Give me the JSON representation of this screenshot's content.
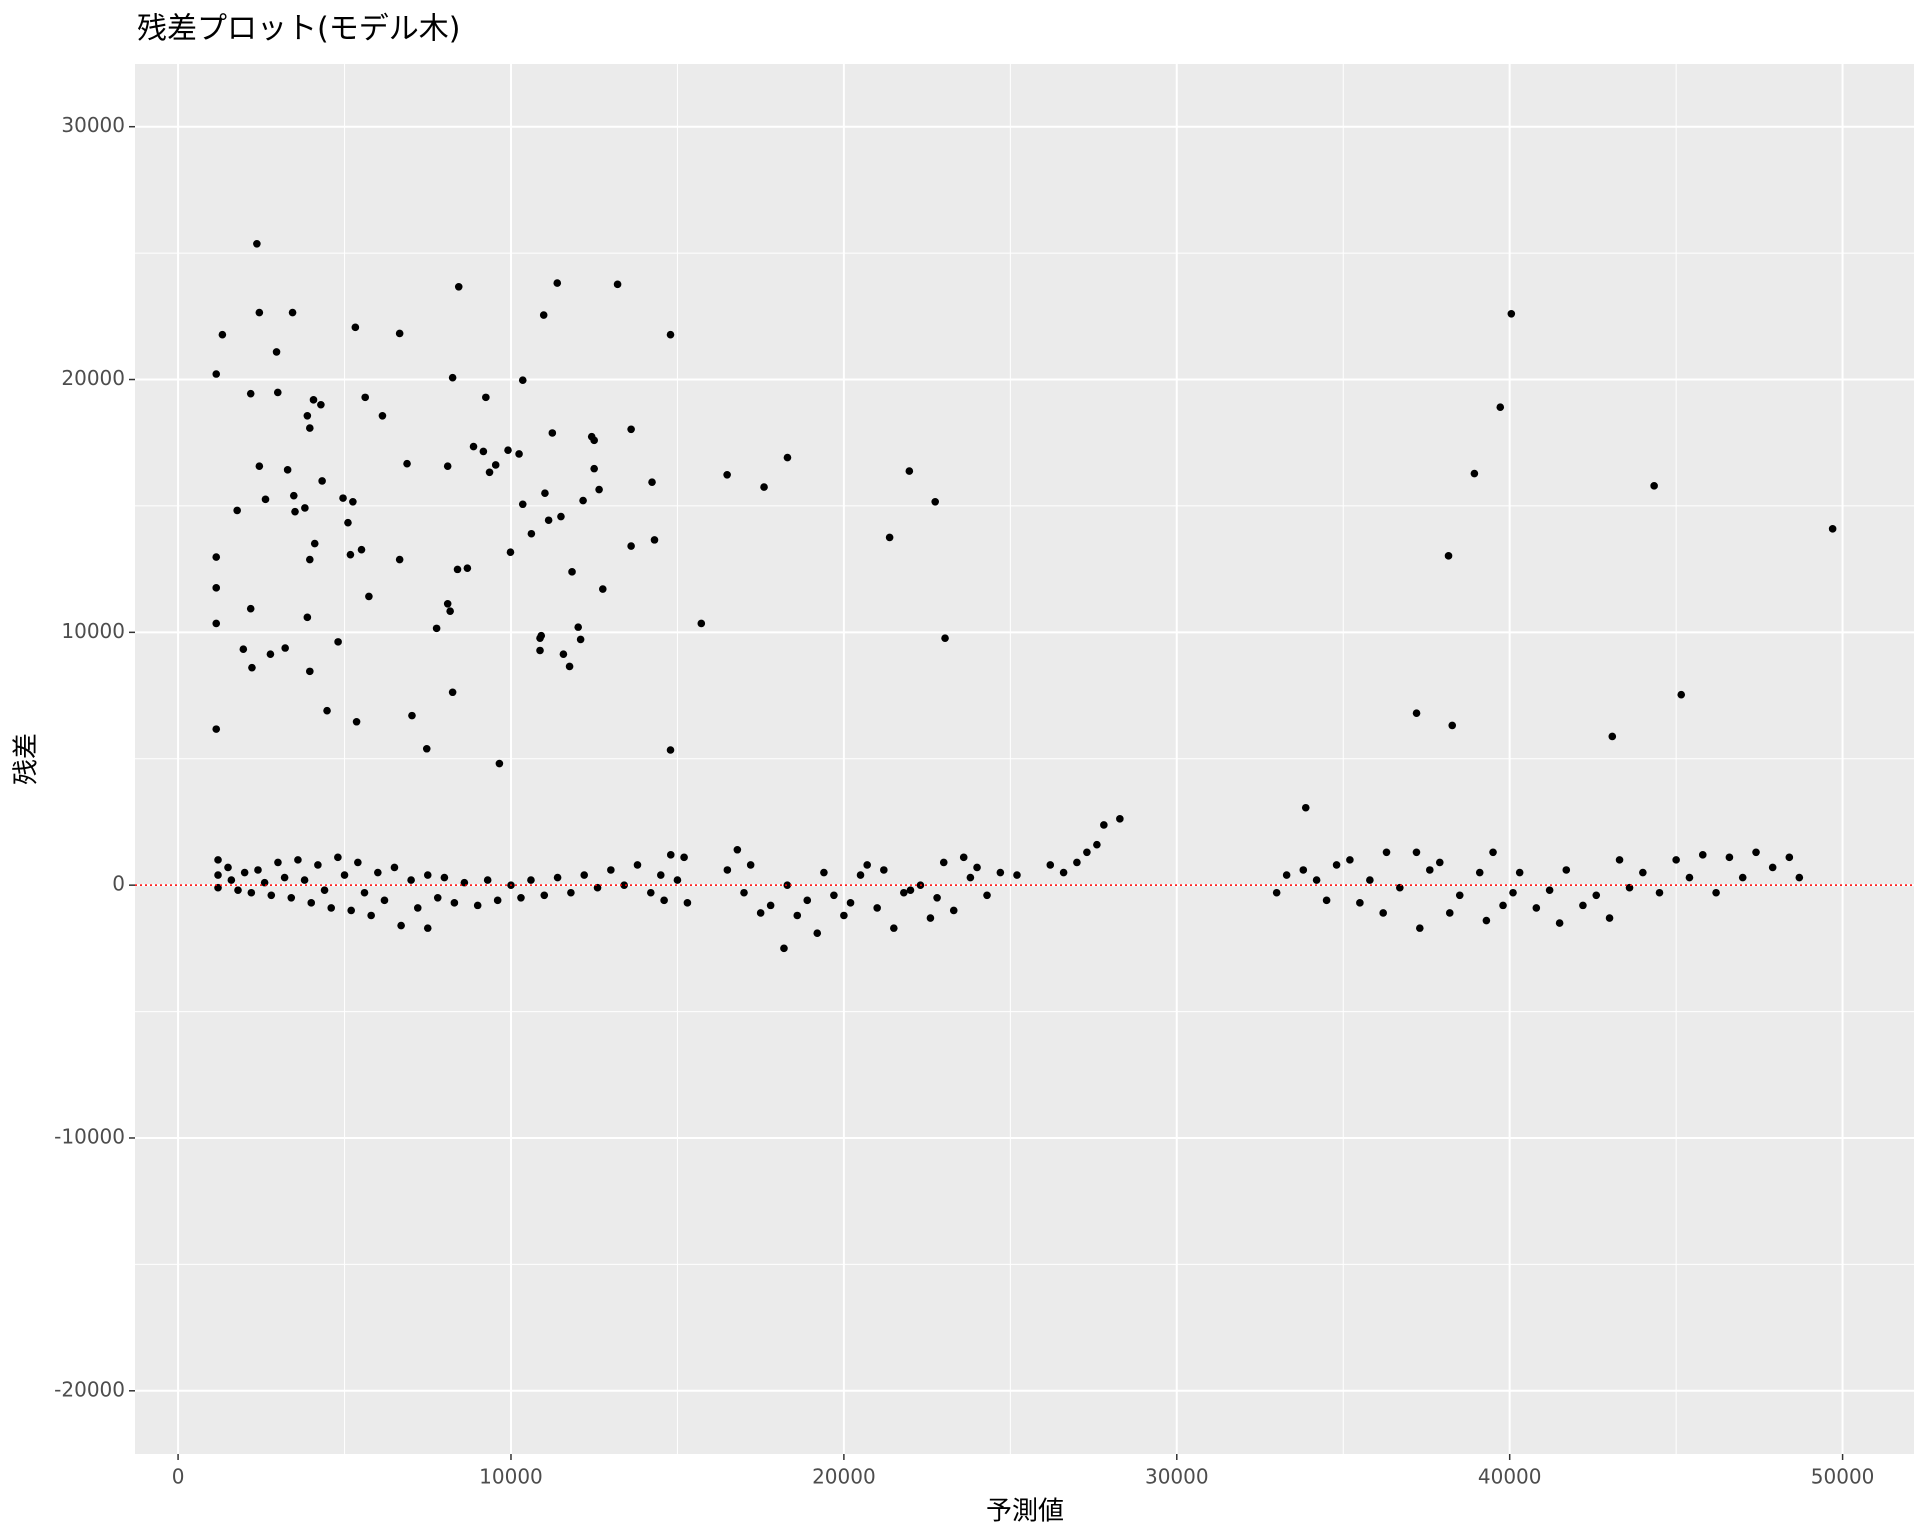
{
  "chart_data": {
    "type": "scatter",
    "title": "残差プロット(モデル木)",
    "x_label": "予測値",
    "y_label": "残差",
    "color": "#000000",
    "xlim": [
      -1294,
      52145
    ],
    "ylim": [
      -22500,
      32480
    ],
    "xticks": [
      0,
      10000,
      20000,
      30000,
      40000,
      50000
    ],
    "yticks": [
      -20000,
      -10000,
      0,
      10000,
      20000,
      30000
    ],
    "x_minor_grid": [
      5000,
      15000,
      25000,
      35000,
      45000
    ],
    "y_minor_grid": [
      -15000,
      -5000,
      5000,
      15000,
      25000
    ],
    "grid": true,
    "hline": {
      "y": 0,
      "color": "#ff0000",
      "style": "dotted"
    },
    "x": [
      1146,
      1146,
      1146,
      1146,
      1146,
      1331,
      1775,
      1960,
      2182,
      2182,
      2219,
      2367,
      2441,
      2441,
      2626,
      2774,
      2958,
      2995,
      3217,
      3291,
      3439,
      3476,
      3513,
      3809,
      3883,
      3957,
      3957,
      4068,
      4105,
      4290,
      4327,
      3883,
      3957,
      4475,
      4807,
      4955,
      5103,
      5177,
      5251,
      5325,
      5362,
      5510,
      5621,
      5732,
      6139,
      6656,
      6656,
      6878,
      7026,
      7470,
      7766,
      8099,
      8173,
      8247,
      8099,
      8247,
      8431,
      8394,
      8690,
      8875,
      9171,
      9245,
      9356,
      9541,
      9652,
      9911,
      9985,
      10243,
      10354,
      10354,
      10613,
      10872,
      10983,
      10872,
      10909,
      11020,
      11131,
      11242,
      11390,
      11501,
      11575,
      11760,
      11834,
      12019,
      12092,
      12166,
      12425,
      12499,
      12499,
      12647,
      12758,
      13202,
      13609,
      13609,
      14237,
      14311,
      14792,
      14792,
      15717,
      16493,
      17602,
      18305,
      21374,
      21966,
      22743,
      23039,
      27809,
      28290,
      33874,
      37202,
      38163,
      38274,
      38940,
      39717,
      40049,
      43082,
      44339,
      45153,
      49701,
      1200,
      1200,
      1200,
      1500,
      1600,
      1800,
      2000,
      2200,
      2400,
      2600,
      2800,
      3000,
      3200,
      3400,
      3600,
      3800,
      4000,
      4200,
      4400,
      4600,
      4800,
      5000,
      5200,
      5400,
      5600,
      5800,
      6000,
      6200,
      6500,
      6700,
      7000,
      7200,
      7500,
      7500,
      7800,
      8000,
      8300,
      8600,
      9000,
      9300,
      9600,
      10000,
      10300,
      10600,
      11000,
      11400,
      11800,
      12200,
      12600,
      13000,
      13400,
      13800,
      14200,
      14500,
      14800,
      14600,
      15200,
      15300,
      15000,
      16500,
      16800,
      17000,
      17200,
      17500,
      17800,
      18200,
      18300,
      18600,
      18900,
      19200,
      19400,
      19700,
      20000,
      20200,
      20500,
      20700,
      21000,
      21200,
      21500,
      21800,
      22000,
      22300,
      22600,
      22800,
      23000,
      23300,
      23600,
      23800,
      24000,
      24300,
      24700,
      25200,
      26200,
      26600,
      27000,
      27300,
      27600,
      33000,
      33300,
      33800,
      34200,
      34500,
      34800,
      35200,
      35500,
      35800,
      36200,
      36300,
      36700,
      37200,
      37300,
      37600,
      37900,
      38200,
      38500,
      39100,
      39300,
      39500,
      39800,
      40100,
      40300,
      40800,
      41200,
      41500,
      41700,
      42200,
      42600,
      43000,
      43300,
      43600,
      44000,
      44500,
      45000,
      45400,
      45800,
      46200,
      46600,
      47000,
      47400,
      47900,
      48400,
      48700
    ],
    "y": [
      20218,
      12976,
      11761,
      10352,
      6172,
      21773,
      14823,
      9332,
      19440,
      10935,
      8602,
      25369,
      22648,
      16573,
      15260,
      9137,
      21092,
      19488,
      9380,
      16427,
      22648,
      15406,
      14774,
      14920,
      18565,
      18079,
      12879,
      19197,
      13511,
      19002,
      15989,
      10594,
      8456,
      6900,
      9623,
      15309,
      14337,
      13073,
      15163,
      22064,
      6463,
      13268,
      19294,
      11421,
      18565,
      21821,
      12879,
      16670,
      6706,
      5395,
      10157,
      16573,
      10838,
      20072,
      11129,
      7630,
      23668,
      12490,
      12539,
      17350,
      17156,
      19294,
      16330,
      16621,
      4811,
      17204,
      13170,
      17058,
      19974,
      15066,
      13900,
      9282,
      22550,
      9769,
      9866,
      15503,
      14434,
      17885,
      23814,
      14580,
      9137,
      8651,
      12393,
      10206,
      9720,
      15212,
      17739,
      17593,
      16475,
      15649,
      11712,
      23765,
      18031,
      13414,
      15941,
      13657,
      21773,
      5346,
      10352,
      16232,
      15746,
      16913,
      13754,
      16378,
      15163,
      9769,
      2381,
      2624,
      3062,
      6804,
      13025,
      6318,
      16281,
      18905,
      22599,
      5881,
      15795,
      7533,
      14094,
      1000,
      400,
      -100,
      700,
      200,
      -200,
      500,
      -300,
      600,
      100,
      -400,
      900,
      300,
      -500,
      1000,
      200,
      -700,
      800,
      -200,
      -900,
      1100,
      400,
      -1000,
      900,
      -300,
      -1200,
      500,
      -600,
      700,
      -1600,
      200,
      -900,
      400,
      -1700,
      -500,
      300,
      -700,
      100,
      -800,
      200,
      -600,
      0,
      -500,
      200,
      -400,
      300,
      -300,
      400,
      -100,
      600,
      0,
      800,
      -300,
      400,
      1200,
      -600,
      1100,
      -700,
      200,
      600,
      1400,
      -300,
      800,
      -1100,
      -800,
      -2500,
      0,
      -1200,
      -600,
      -1900,
      500,
      -400,
      -1200,
      -700,
      400,
      800,
      -900,
      600,
      -1700,
      -300,
      -200,
      0,
      -1300,
      -500,
      900,
      -1000,
      1100,
      300,
      700,
      -400,
      500,
      400,
      800,
      500,
      900,
      1300,
      1600,
      -300,
      400,
      600,
      200,
      -600,
      800,
      1000,
      -700,
      200,
      -1100,
      1300,
      -100,
      1300,
      -1700,
      600,
      900,
      -1100,
      -400,
      500,
      -1400,
      1300,
      -800,
      -300,
      500,
      -900,
      -200,
      -1500,
      600,
      -800,
      -400,
      -1300,
      1000,
      -100,
      500,
      -300,
      1000,
      300,
      1200,
      -300,
      1100,
      300,
      1300,
      700,
      1100,
      300
    ]
  }
}
